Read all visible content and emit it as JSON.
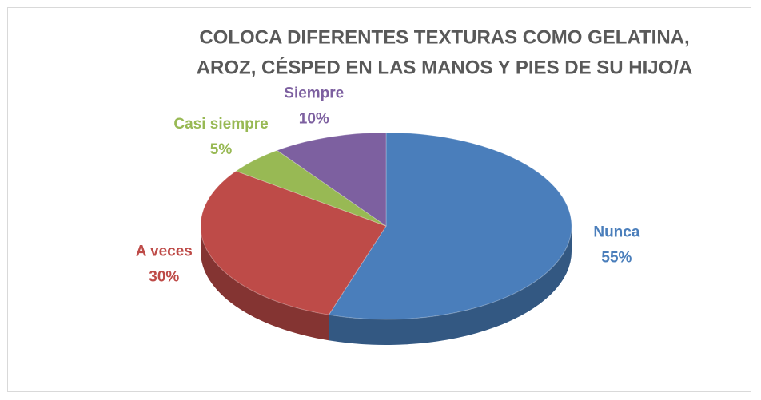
{
  "chart_data": {
    "type": "pie3d",
    "title": [
      "COLOCA DIFERENTES TEXTURAS COMO GELATINA,",
      "AROZ, CÉSPED EN LAS MANOS Y PIES DE SU HIJO/A"
    ],
    "categories": [
      "Nunca",
      "A veces",
      "Casi siempre",
      "Siempre"
    ],
    "values": [
      55,
      30,
      5,
      10
    ],
    "value_labels": [
      "55%",
      "30%",
      "5%",
      "10%"
    ],
    "colors": [
      "#4a7ebb",
      "#be4b48",
      "#98b954",
      "#7d60a0"
    ]
  }
}
